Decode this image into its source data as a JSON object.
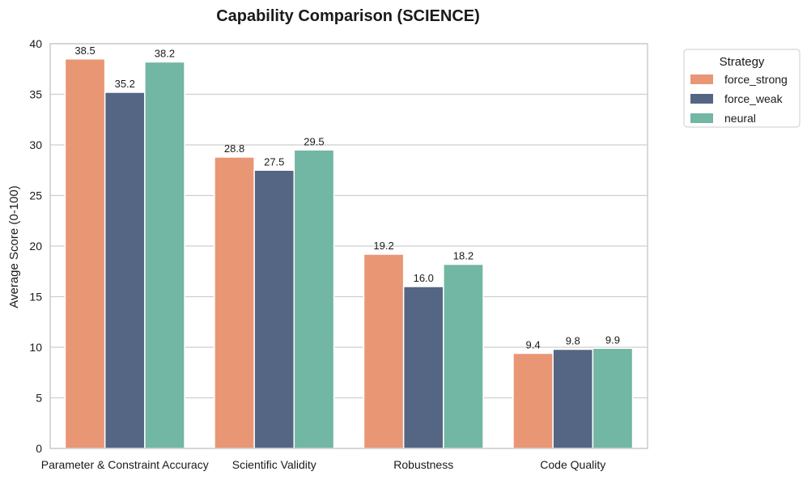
{
  "chart_data": {
    "type": "bar",
    "title": "Capability Comparison (SCIENCE)",
    "xlabel": "",
    "ylabel": "Average Score (0-100)",
    "ylim": [
      0,
      40
    ],
    "yticks": [
      0,
      5,
      10,
      15,
      20,
      25,
      30,
      35,
      40
    ],
    "grid": true,
    "categories": [
      "Parameter & Constraint Accuracy",
      "Scientific Validity",
      "Robustness",
      "Code Quality"
    ],
    "series": [
      {
        "name": "force_strong",
        "color": "#e99675",
        "values": [
          38.5,
          28.8,
          19.2,
          9.4
        ],
        "labels": [
          "38.5",
          "28.8",
          "19.2",
          "9.4"
        ]
      },
      {
        "name": "force_weak",
        "color": "#546683",
        "values": [
          35.2,
          27.5,
          16.0,
          9.8
        ],
        "labels": [
          "35.2",
          "27.5",
          "16.0",
          "9.8"
        ]
      },
      {
        "name": "neural",
        "color": "#72b6a4",
        "values": [
          38.2,
          29.5,
          18.2,
          9.9
        ],
        "labels": [
          "38.2",
          "29.5",
          "18.2",
          "9.9"
        ]
      }
    ],
    "legend": {
      "title": "Strategy",
      "position": "outside-top-right"
    }
  }
}
